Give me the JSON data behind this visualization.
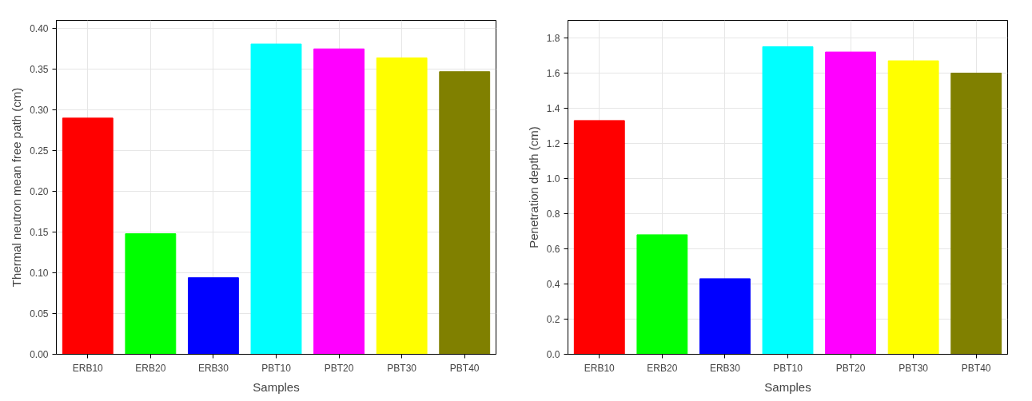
{
  "chart_data": [
    {
      "type": "bar",
      "xlabel": "Samples",
      "ylabel": "Thermal neutron mean free path (cm)",
      "categories": [
        "ERB10",
        "ERB20",
        "ERB30",
        "PBT10",
        "PBT20",
        "PBT30",
        "PBT40"
      ],
      "values": [
        0.29,
        0.148,
        0.094,
        0.381,
        0.375,
        0.364,
        0.347
      ],
      "colors": [
        "#ff0000",
        "#00ff00",
        "#0000ff",
        "#00ffff",
        "#ff00ff",
        "#ffff00",
        "#808000"
      ],
      "ylim": [
        0,
        0.41
      ],
      "yticks": [
        {
          "value": 0,
          "label": "0.00"
        },
        0.05,
        {
          "value": 0.1,
          "label": "0.10"
        },
        0.15,
        {
          "value": 0.2,
          "label": "0.20"
        },
        0.25,
        {
          "value": 0.3,
          "label": "0.30"
        },
        0.35,
        {
          "value": 0.4,
          "label": "0.40"
        }
      ],
      "grid": true
    },
    {
      "type": "bar",
      "xlabel": "Samples",
      "ylabel": "Penetration depth (cm)",
      "categories": [
        "ERB10",
        "ERB20",
        "ERB30",
        "PBT10",
        "PBT20",
        "PBT30",
        "PBT40"
      ],
      "values": [
        1.33,
        0.68,
        0.43,
        1.75,
        1.72,
        1.67,
        1.6
      ],
      "colors": [
        "#ff0000",
        "#00ff00",
        "#0000ff",
        "#00ffff",
        "#ff00ff",
        "#ffff00",
        "#808000"
      ],
      "ylim": [
        0,
        1.9
      ],
      "yticks": [
        {
          "value": 0,
          "label": "0.0"
        },
        0.2,
        0.4,
        0.6,
        0.8,
        {
          "value": 1,
          "label": "1.0"
        },
        1.2,
        1.4,
        1.6,
        1.8
      ],
      "grid": true
    }
  ]
}
